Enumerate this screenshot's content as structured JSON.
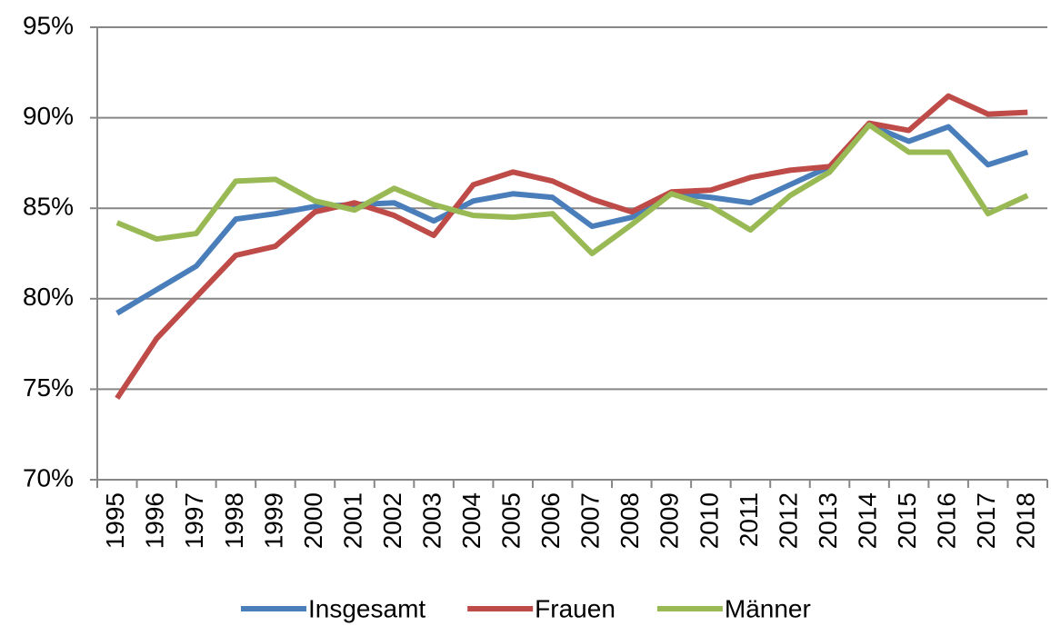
{
  "chart_data": {
    "type": "line",
    "categories": [
      "1995",
      "1996",
      "1997",
      "1998",
      "1999",
      "2000",
      "2001",
      "2002",
      "2003",
      "2004",
      "2005",
      "2006",
      "2007",
      "2008",
      "2009",
      "2010",
      "2011",
      "2012",
      "2013",
      "2014",
      "2015",
      "2016",
      "2017",
      "2018"
    ],
    "series": [
      {
        "name": "Insgesamt",
        "color": "#4a7ebb",
        "values": [
          79.2,
          80.5,
          81.8,
          84.4,
          84.7,
          85.1,
          85.2,
          85.3,
          84.3,
          85.4,
          85.8,
          85.6,
          84.0,
          84.5,
          85.8,
          85.6,
          85.3,
          86.3,
          87.3,
          89.6,
          88.7,
          89.5,
          87.4,
          88.1
        ]
      },
      {
        "name": "Frauen",
        "color": "#be4b48",
        "values": [
          74.5,
          77.8,
          80.1,
          82.4,
          82.9,
          84.8,
          85.3,
          84.6,
          83.5,
          86.3,
          87.0,
          86.5,
          85.5,
          84.8,
          85.9,
          86.0,
          86.7,
          87.1,
          87.3,
          89.7,
          89.3,
          91.2,
          90.2,
          90.3
        ]
      },
      {
        "name": "Männer",
        "color": "#98b954",
        "values": [
          84.2,
          83.3,
          83.6,
          86.5,
          86.6,
          85.4,
          84.9,
          86.1,
          85.2,
          84.6,
          84.5,
          84.7,
          82.5,
          84.1,
          85.8,
          85.1,
          83.8,
          85.7,
          87.0,
          89.6,
          88.1,
          88.1,
          84.7,
          85.7
        ]
      }
    ],
    "ylim": [
      70,
      95
    ],
    "yticks": [
      {
        "value": 70,
        "label": "70%"
      },
      {
        "value": 75,
        "label": "75%"
      },
      {
        "value": 80,
        "label": "80%"
      },
      {
        "value": 85,
        "label": "85%"
      },
      {
        "value": 90,
        "label": "90%"
      },
      {
        "value": 95,
        "label": "95%"
      }
    ],
    "grid": true,
    "legend": "bottom"
  }
}
